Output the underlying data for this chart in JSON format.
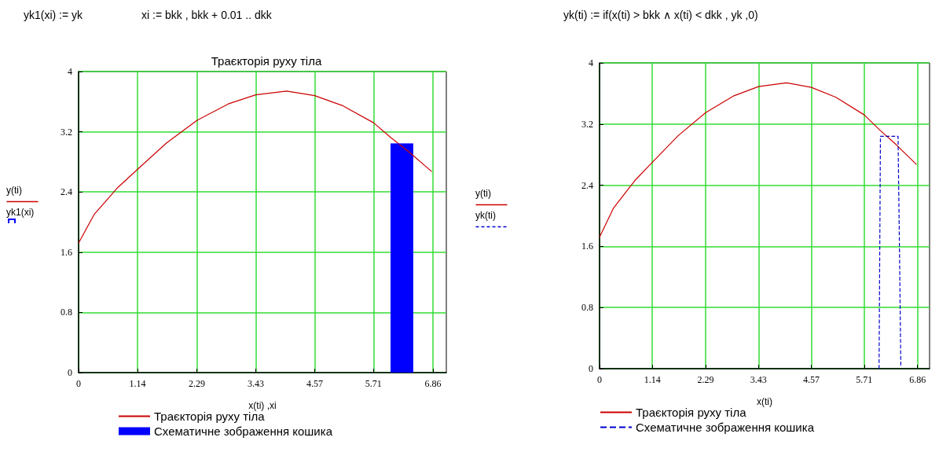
{
  "chart_data": [
    {
      "type": "line",
      "title": "Траєкторія руху тіла",
      "xlabel": "x(ti) ,xi",
      "ylabel": "y(ti)\nyk1(xi)",
      "annotations": [
        "yk1(xi) := yk",
        "xi := bkk , bkk + 0.01 .. dkk"
      ],
      "xlim": [
        0,
        7.12
      ],
      "ylim": [
        0,
        4
      ],
      "xticks": [
        0,
        1.14,
        2.29,
        3.43,
        4.57,
        5.71,
        6.86
      ],
      "yticks": [
        0,
        0.8,
        1.6,
        2.4,
        3.2,
        4
      ],
      "grid": true,
      "legend": "bottom",
      "marker": "none",
      "series": [
        {
          "name": "Траєкторія руху тіла",
          "color": "#cc0000",
          "type": "line",
          "x": [
            0,
            0.3,
            0.76,
            1.14,
            1.7,
            2.29,
            2.9,
            3.43,
            4.03,
            4.57,
            5.1,
            5.71,
            6.05,
            6.4,
            6.84
          ],
          "values": [
            1.72,
            2.1,
            2.46,
            2.7,
            3.05,
            3.35,
            3.57,
            3.69,
            3.74,
            3.68,
            3.55,
            3.32,
            3.12,
            2.93,
            2.67
          ]
        },
        {
          "name": "Схематичне зображення кошика",
          "color": "#0000ff",
          "type": "area",
          "x": [
            6.04,
            6.48
          ],
          "values": [
            3.04,
            3.04
          ]
        }
      ]
    },
    {
      "type": "line",
      "xlabel": "x(ti)",
      "ylabel": "y(ti)\nyk(ti)",
      "annotations": [
        "yk(ti) := if(x(ti) > bkk ∧ x(ti) < dkk , yk ,0)"
      ],
      "xlim": [
        0,
        7.12
      ],
      "ylim": [
        0,
        4
      ],
      "xticks": [
        0,
        1.14,
        2.29,
        3.43,
        4.57,
        5.71,
        6.86
      ],
      "yticks": [
        0,
        0.8,
        1.6,
        2.4,
        3.2,
        4
      ],
      "grid": true,
      "legend": "bottom",
      "marker": "none",
      "series": [
        {
          "name": "Траєкторія руху тіла",
          "color": "#cc0000",
          "type": "line",
          "x": [
            0,
            0.3,
            0.76,
            1.14,
            1.7,
            2.29,
            2.9,
            3.43,
            4.03,
            4.57,
            5.1,
            5.71,
            6.05,
            6.4,
            6.84
          ],
          "values": [
            1.72,
            2.1,
            2.46,
            2.7,
            3.05,
            3.35,
            3.57,
            3.69,
            3.74,
            3.68,
            3.55,
            3.32,
            3.12,
            2.93,
            2.67
          ]
        },
        {
          "name": "Схематичне зображення кошика",
          "color": "#0000cc",
          "type": "line",
          "line_style": "dashed",
          "x": [
            6.03,
            6.06,
            6.44,
            6.47,
            6.5
          ],
          "values": [
            0,
            3.04,
            3.04,
            1.6,
            0.04
          ]
        }
      ]
    }
  ]
}
